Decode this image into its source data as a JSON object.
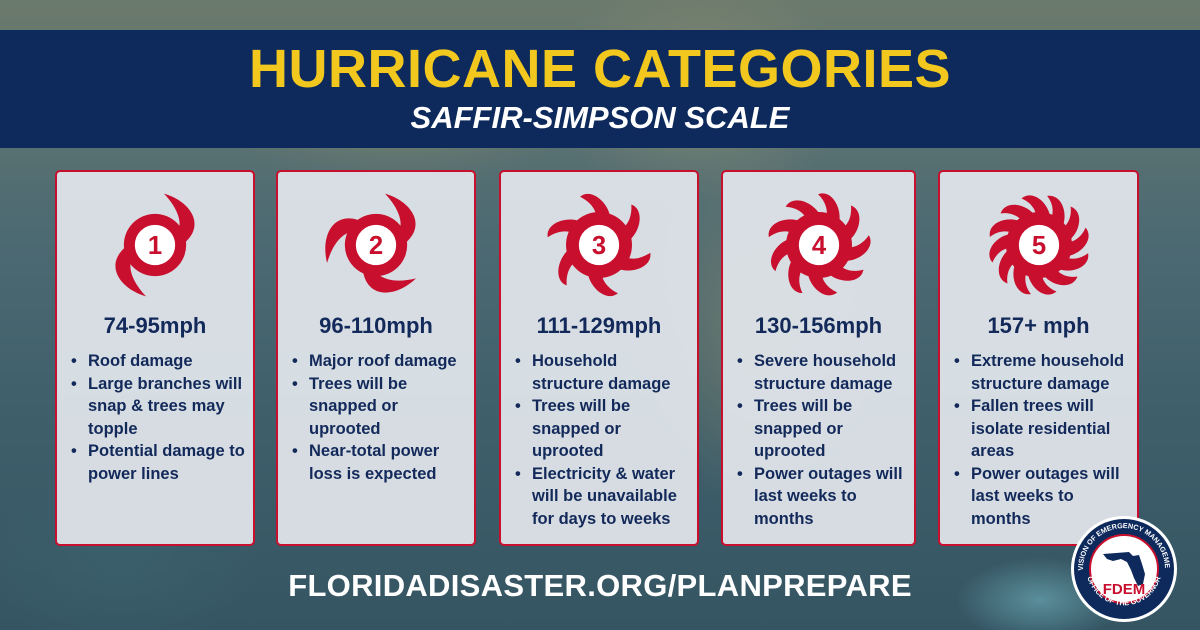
{
  "header": {
    "title": "HURRICANE CATEGORIES",
    "subtitle": "SAFFIR-SIMPSON SCALE"
  },
  "colors": {
    "banner": "#0e2a5c",
    "title": "#f2c81e",
    "accent_red": "#c8102e",
    "text_navy": "#12295a"
  },
  "categories": [
    {
      "number": "1",
      "speed": "74-95mph",
      "icon": "hurricane-category-1-icon",
      "bullets": [
        "Roof damage",
        "Large branches will snap & trees may topple",
        "Potential damage to power lines"
      ]
    },
    {
      "number": "2",
      "speed": "96-110mph",
      "icon": "hurricane-category-2-icon",
      "bullets": [
        "Major roof damage",
        "Trees will be snapped or uprooted",
        "Near-total power loss is expected"
      ]
    },
    {
      "number": "3",
      "speed": "111-129mph",
      "icon": "hurricane-category-3-icon",
      "bullets": [
        "Household structure damage",
        "Trees will be snapped or uprooted",
        "Electricity & water will be unavailable for  days to weeks"
      ]
    },
    {
      "number": "4",
      "speed": "130-156mph",
      "icon": "hurricane-category-4-icon",
      "bullets": [
        "Severe household structure damage",
        "Trees will be snapped or uprooted",
        "Power outages will last weeks to months"
      ]
    },
    {
      "number": "5",
      "speed": "157+ mph",
      "icon": "hurricane-category-5-icon",
      "bullets": [
        "Extreme household structure damage",
        "Fallen trees will isolate residential areas",
        "Power outages will last weeks to months"
      ]
    }
  ],
  "footer": {
    "url": "FLORIDADISASTER.ORG/PLANPREPARE"
  },
  "seal": {
    "icon": "fdem-seal-icon",
    "acronym": "FDEM",
    "top_text": "DIVISION OF EMERGENCY MANAGEMENT",
    "bottom_text": "OFFICE OF THE GOVERNOR"
  }
}
